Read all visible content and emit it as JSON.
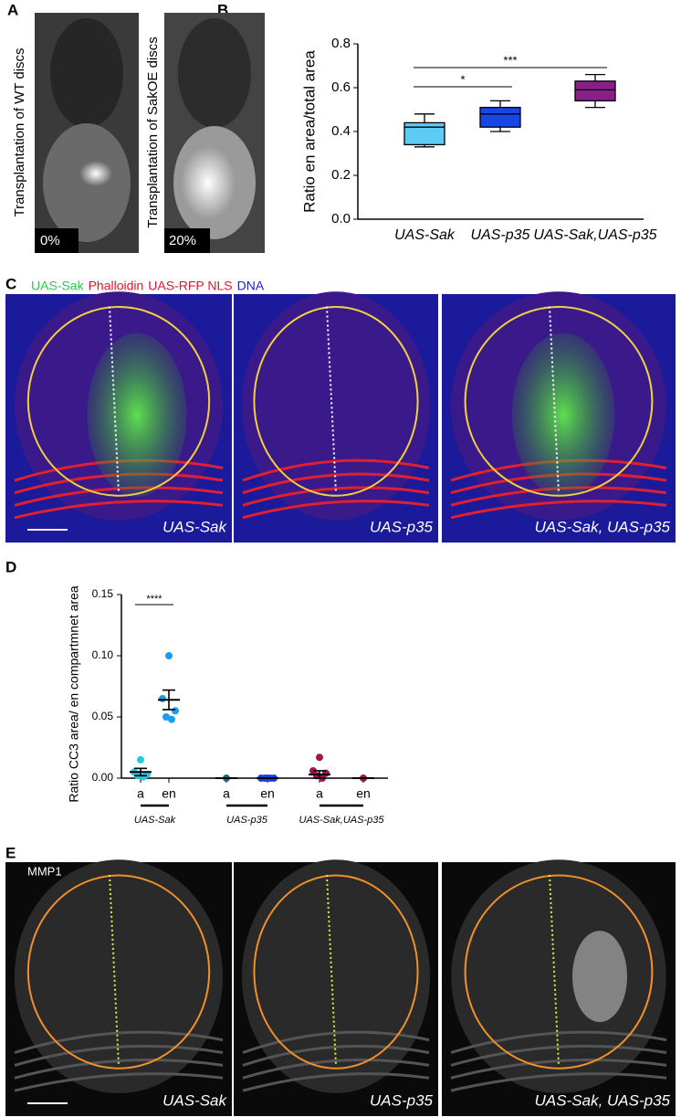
{
  "panel_labels": [
    "A",
    "B",
    "C",
    "D",
    "E"
  ],
  "panel_a": {
    "images": [
      {
        "caption": "Transplantation of WT discs",
        "percent": "0%"
      },
      {
        "caption": "Transplantation of SakOE discs",
        "percent": "20%"
      }
    ]
  },
  "panel_c": {
    "legend": [
      {
        "text": "UAS-Sak",
        "color": "#2ec84a"
      },
      {
        "text": "Phalloidin",
        "color": "#e8102a"
      },
      {
        "text": "UAS-RFP NLS",
        "color": "#e8102a"
      },
      {
        "text": "DNA",
        "color": "#1a1ae0"
      }
    ],
    "images": [
      "UAS-Sak",
      "UAS-p35",
      "UAS-Sak, UAS-p35"
    ]
  },
  "panel_e": {
    "stain": "MMP1",
    "images": [
      "UAS-Sak",
      "UAS-p35",
      "UAS-Sak, UAS-p35"
    ]
  },
  "chart_data": [
    {
      "type": "box",
      "y_label": "Ratio en area/total area",
      "categories": [
        "UAS-Sak",
        "UAS-p35",
        "UAS-Sak,UAS-p35"
      ],
      "colors": [
        "#5ecbf5",
        "#1846e6",
        "#8b1f8a"
      ],
      "min": [
        0.33,
        0.4,
        0.51
      ],
      "q1": [
        0.34,
        0.42,
        0.54
      ],
      "median": [
        0.42,
        0.48,
        0.59
      ],
      "q3": [
        0.44,
        0.51,
        0.63
      ],
      "max": [
        0.48,
        0.54,
        0.66
      ],
      "ylim": [
        0,
        0.8
      ],
      "yticks": [
        {
          "value": 0,
          "label": "0.0"
        },
        0.2,
        0.4,
        0.6,
        0.8
      ],
      "annotations": [
        {
          "text": "*",
          "between": [
            0,
            1
          ]
        },
        {
          "text": "***",
          "between": [
            0,
            2
          ]
        }
      ]
    },
    {
      "type": "dot",
      "y_label": "Ratio CC3 area/ en compartmnet area",
      "categories": [
        "a",
        "en",
        "a",
        "en",
        "a",
        "en"
      ],
      "groups": [
        "UAS-Sak",
        "UAS-p35",
        "UAS-Sak,UAS-p35"
      ],
      "colors": [
        "#28c8e0",
        "#1a9cf0",
        "#1a6e80",
        "#1a3ee0",
        "#a01450",
        "#a01450"
      ],
      "points": [
        [
          0.015,
          0.005,
          0.003,
          0.002,
          0.001
        ],
        [
          0.1,
          0.065,
          0.055,
          0.05,
          0.048
        ],
        [
          0
        ],
        [
          0,
          0,
          0,
          0,
          0
        ],
        [
          0.017,
          0.006,
          0.004,
          0.002,
          0
        ],
        [
          0
        ]
      ],
      "means": [
        0.005,
        0.064,
        0,
        0,
        0.003,
        0
      ],
      "sems": [
        0.003,
        0.008,
        0,
        0,
        0.003,
        0
      ],
      "ylim": [
        0,
        0.15
      ],
      "yticks": [
        {
          "value": 0,
          "label": "0.00"
        },
        {
          "value": 0.05,
          "label": "0.05"
        },
        {
          "value": 0.1,
          "label": "0.10"
        },
        {
          "value": 0.15,
          "label": "0.15"
        }
      ],
      "annotations": [
        {
          "text": "****",
          "between": [
            0,
            1
          ]
        }
      ]
    }
  ]
}
